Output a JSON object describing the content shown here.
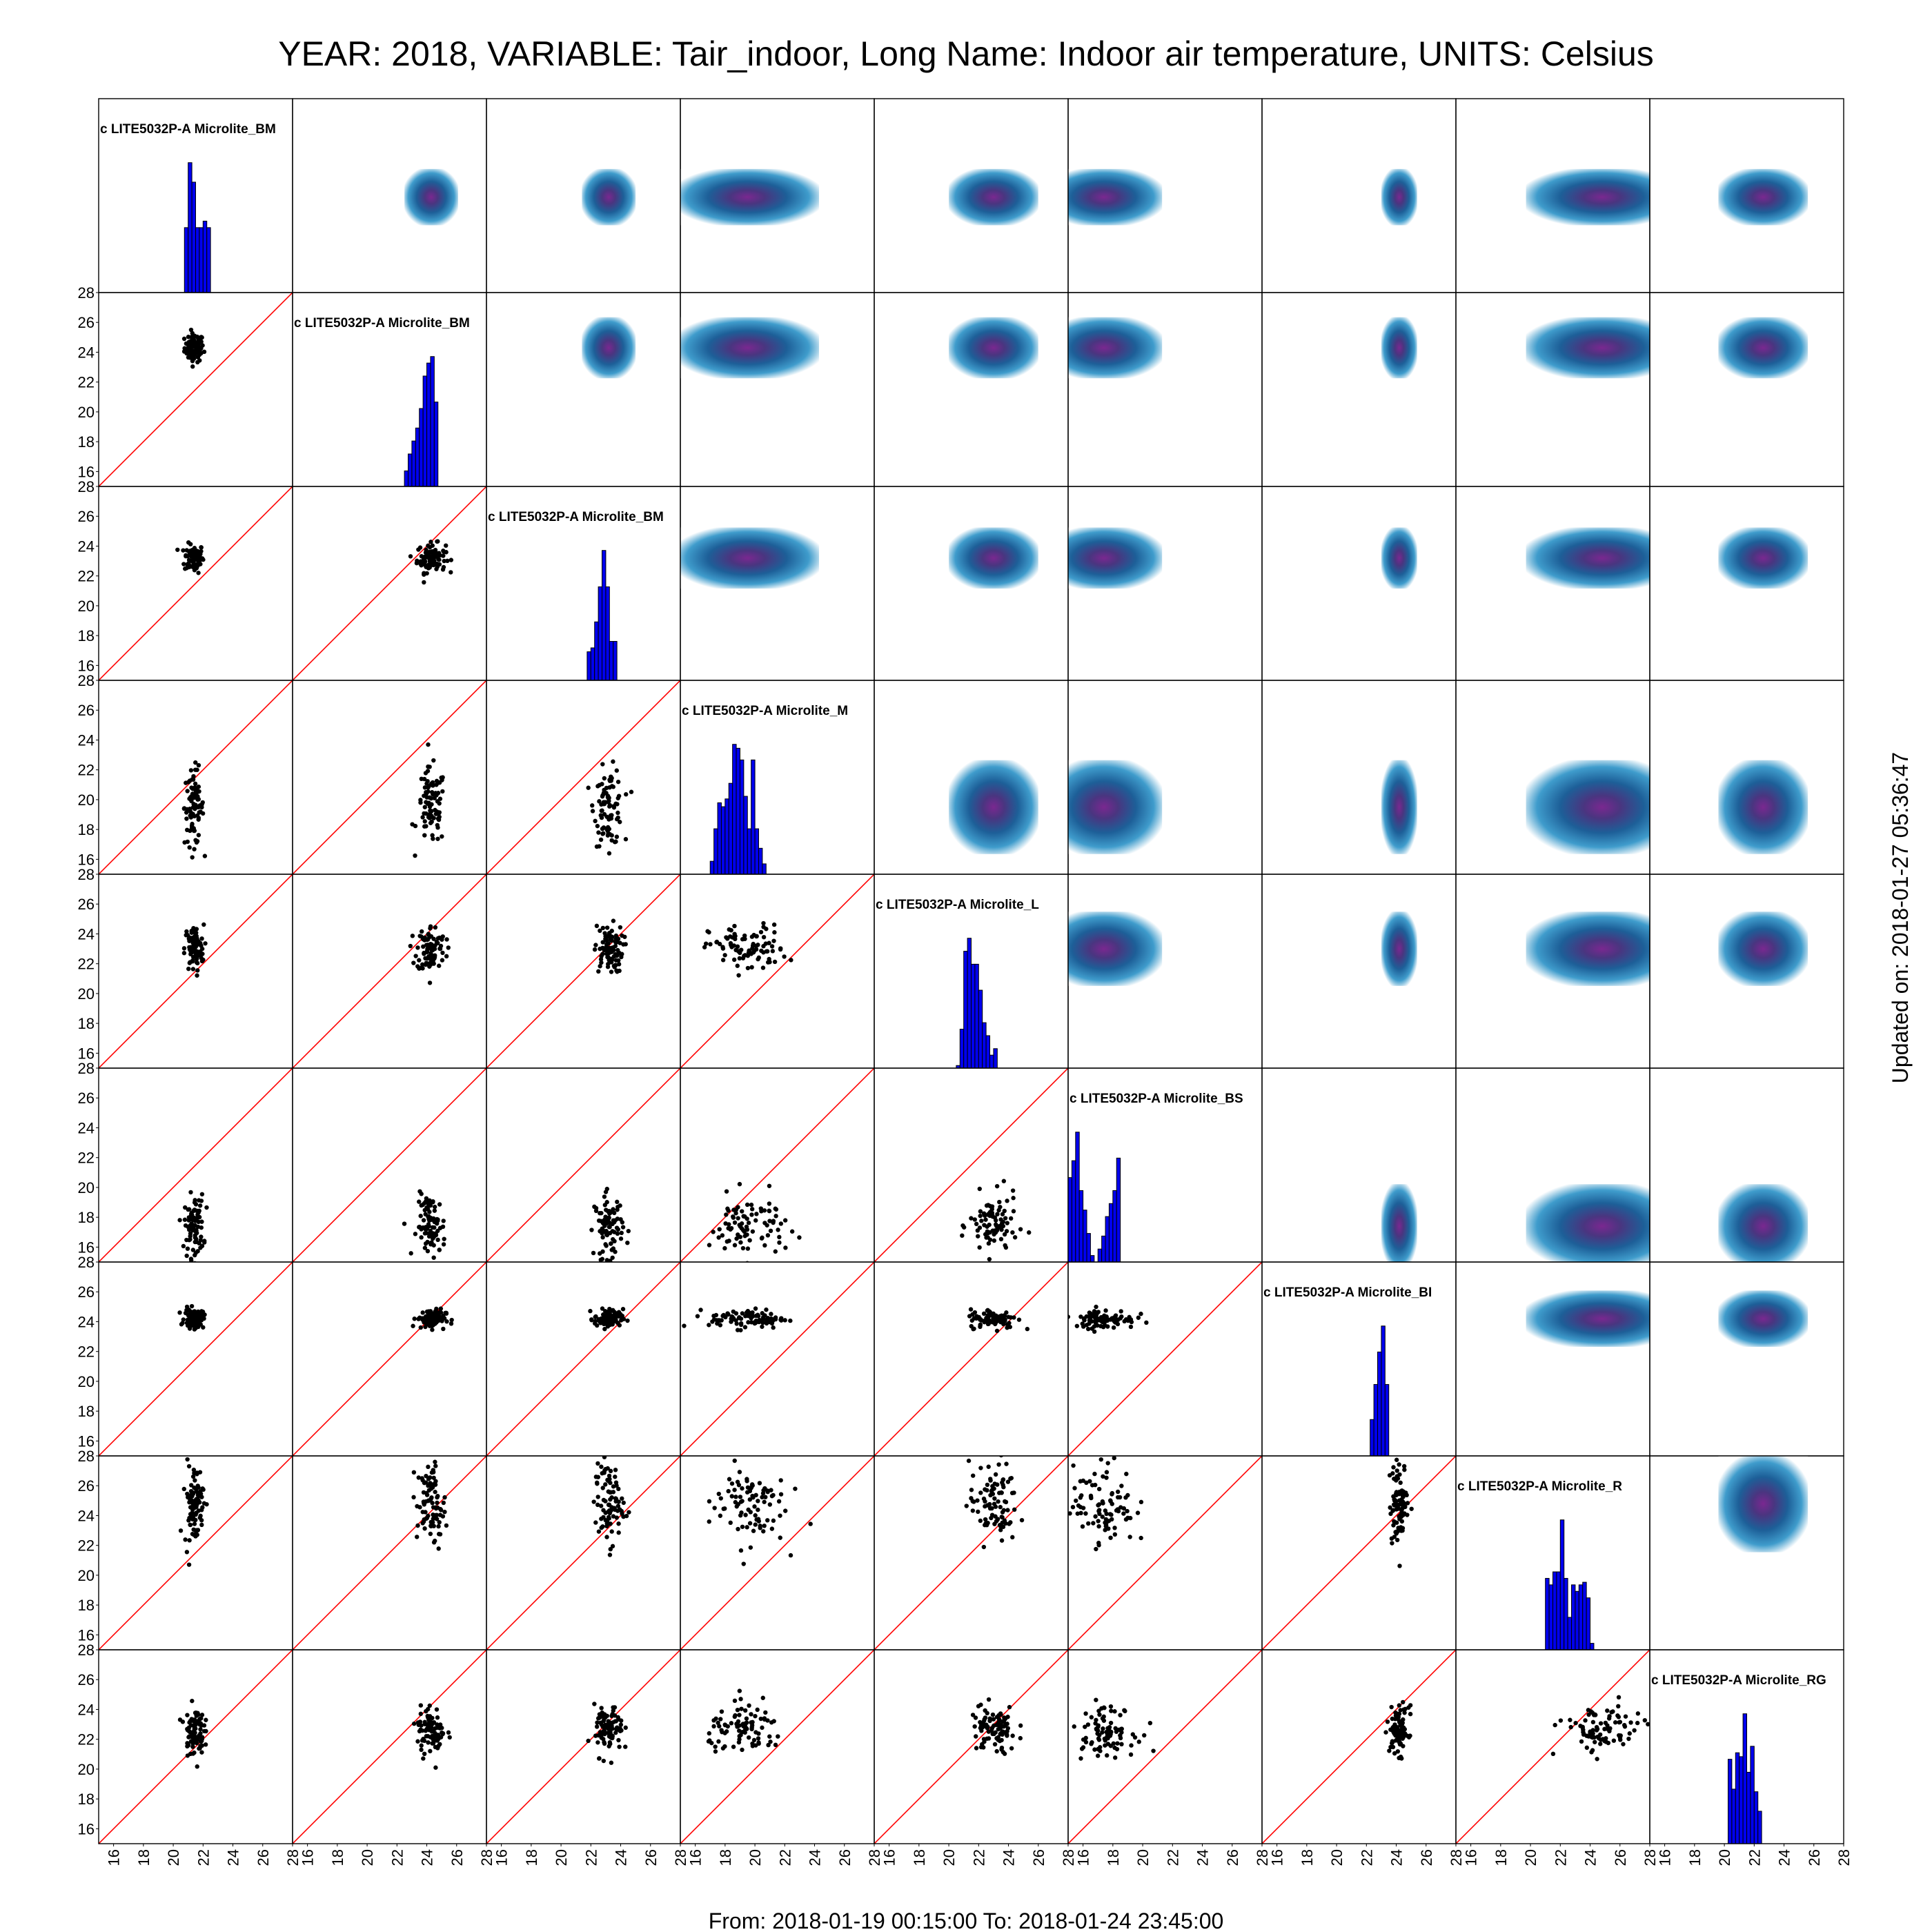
{
  "title": "YEAR: 2018, VARIABLE: Tair_indoor, Long Name: Indoor air temperature, UNITS: Celsius",
  "footer": "From: 2018-01-19 00:15:00 To: 2018-01-24 23:45:00",
  "updated": "Updated on: 2018-01-27 05:36:47",
  "colors": {
    "histogram": "#0000ee",
    "diagonal_line": "#ff0000",
    "points": "#000000",
    "density_core": "#6a2a8e",
    "density_edge": "#1f78b4"
  },
  "chart_data": {
    "type": "scatter-matrix",
    "axis_range": [
      15,
      28
    ],
    "ticks": [
      16,
      18,
      20,
      22,
      24,
      26,
      28
    ],
    "variables": [
      {
        "name": "c LITE5032P-A Microlite_BM",
        "mean": 21.4,
        "sd": 0.4,
        "hist": [
          0,
          0,
          0,
          0,
          0,
          0,
          0,
          0,
          0,
          0,
          0,
          0,
          0,
          0,
          0,
          0,
          0,
          0,
          0,
          0,
          0,
          0,
          0,
          0.5,
          1.0,
          0.85,
          0.5,
          0.5,
          0.55,
          0.5,
          0,
          0,
          0,
          0,
          0,
          0,
          0,
          0,
          0,
          0,
          0,
          0,
          0,
          0,
          0,
          0,
          0,
          0,
          0,
          0,
          0,
          0
        ]
      },
      {
        "name": "c LITE5032P-A Microlite_BM",
        "mean": 24.3,
        "sd": 0.6,
        "hist": [
          0,
          0,
          0,
          0,
          0,
          0,
          0,
          0,
          0,
          0,
          0,
          0,
          0,
          0,
          0,
          0,
          0,
          0,
          0,
          0,
          0,
          0,
          0,
          0,
          0,
          0,
          0,
          0,
          0,
          0,
          0.12,
          0.25,
          0.35,
          0.45,
          0.6,
          0.85,
          0.95,
          1.0,
          0.65,
          0,
          0,
          0,
          0,
          0,
          0,
          0,
          0,
          0,
          0,
          0,
          0,
          0
        ]
      },
      {
        "name": "c LITE5032P-A Microlite_BM",
        "mean": 23.2,
        "sd": 0.6,
        "hist": [
          0,
          0,
          0,
          0,
          0,
          0,
          0,
          0,
          0,
          0,
          0,
          0,
          0,
          0,
          0,
          0,
          0,
          0,
          0,
          0,
          0,
          0,
          0,
          0,
          0,
          0,
          0,
          0.22,
          0.25,
          0.45,
          0.72,
          1.0,
          0.72,
          0.3,
          0.3,
          0,
          0,
          0,
          0,
          0,
          0,
          0,
          0,
          0,
          0,
          0,
          0,
          0,
          0,
          0,
          0,
          0
        ]
      },
      {
        "name": "c LITE5032P-A Microlite_M",
        "mean": 19.5,
        "sd": 1.6,
        "hist": [
          0,
          0,
          0,
          0,
          0,
          0,
          0,
          0,
          0.1,
          0.35,
          0.55,
          0.52,
          0.58,
          0.7,
          1.0,
          0.97,
          0.88,
          0.6,
          0.35,
          0.88,
          0.35,
          0.2,
          0.08,
          0,
          0,
          0,
          0,
          0,
          0,
          0,
          0,
          0,
          0,
          0,
          0,
          0,
          0,
          0,
          0,
          0,
          0,
          0,
          0,
          0,
          0,
          0,
          0,
          0,
          0,
          0,
          0,
          0
        ]
      },
      {
        "name": "c LITE5032P-A Microlite_L",
        "mean": 23.0,
        "sd": 1.0,
        "hist": [
          0,
          0,
          0,
          0,
          0,
          0,
          0,
          0,
          0,
          0,
          0,
          0,
          0,
          0,
          0,
          0,
          0,
          0,
          0,
          0,
          0,
          0,
          0.02,
          0.3,
          0.9,
          1.0,
          0.8,
          0.8,
          0.6,
          0.35,
          0.25,
          0.1,
          0.15,
          0,
          0,
          0,
          0,
          0,
          0,
          0,
          0,
          0,
          0,
          0,
          0,
          0,
          0,
          0,
          0,
          0,
          0,
          0
        ]
      },
      {
        "name": "c LITE5032P-A Microlite_BS",
        "mean": 17.4,
        "sd": 1.3,
        "hist": [
          0.65,
          0.78,
          1.0,
          0.55,
          0.4,
          0.22,
          0.05,
          0,
          0.1,
          0.2,
          0.35,
          0.45,
          0.55,
          0.8,
          0,
          0,
          0,
          0,
          0,
          0,
          0,
          0,
          0,
          0,
          0,
          0,
          0,
          0,
          0,
          0,
          0,
          0,
          0,
          0,
          0,
          0,
          0,
          0,
          0,
          0,
          0,
          0,
          0,
          0,
          0,
          0,
          0,
          0,
          0,
          0,
          0,
          0
        ]
      },
      {
        "name": "c LITE5032P-A Microlite_BI",
        "mean": 24.2,
        "sd": 0.4,
        "hist": [
          0,
          0,
          0,
          0,
          0,
          0,
          0,
          0,
          0,
          0,
          0,
          0,
          0,
          0,
          0,
          0,
          0,
          0,
          0,
          0,
          0,
          0,
          0,
          0,
          0,
          0,
          0,
          0,
          0,
          0.28,
          0.55,
          0.8,
          1.0,
          0.55,
          0,
          0,
          0,
          0,
          0,
          0,
          0,
          0,
          0,
          0,
          0,
          0,
          0,
          0,
          0,
          0,
          0,
          0
        ]
      },
      {
        "name": "c LITE5032P-A Microlite_R",
        "mean": 24.8,
        "sd": 1.7,
        "hist": [
          0,
          0,
          0,
          0,
          0,
          0,
          0,
          0,
          0,
          0,
          0,
          0,
          0,
          0,
          0,
          0,
          0,
          0,
          0,
          0,
          0,
          0,
          0,
          0,
          0.55,
          0.5,
          0.6,
          0.6,
          1.0,
          0.55,
          0.25,
          0.5,
          0.45,
          0.5,
          0.52,
          0.4,
          0.05,
          0,
          0,
          0,
          0,
          0,
          0,
          0,
          0,
          0,
          0,
          0,
          0,
          0,
          0,
          0
        ]
      },
      {
        "name": "c LITE5032P-A Microlite_RG",
        "mean": 22.6,
        "sd": 1.0,
        "hist": [
          0,
          0,
          0,
          0,
          0,
          0,
          0,
          0,
          0,
          0,
          0,
          0,
          0,
          0,
          0,
          0,
          0,
          0,
          0,
          0,
          0,
          0.65,
          0.42,
          0.7,
          0.67,
          1.0,
          0.55,
          0.75,
          0.4,
          0.25,
          0,
          0,
          0,
          0,
          0,
          0,
          0,
          0,
          0,
          0,
          0,
          0,
          0,
          0,
          0,
          0,
          0,
          0,
          0,
          0,
          0,
          0
        ]
      }
    ]
  }
}
